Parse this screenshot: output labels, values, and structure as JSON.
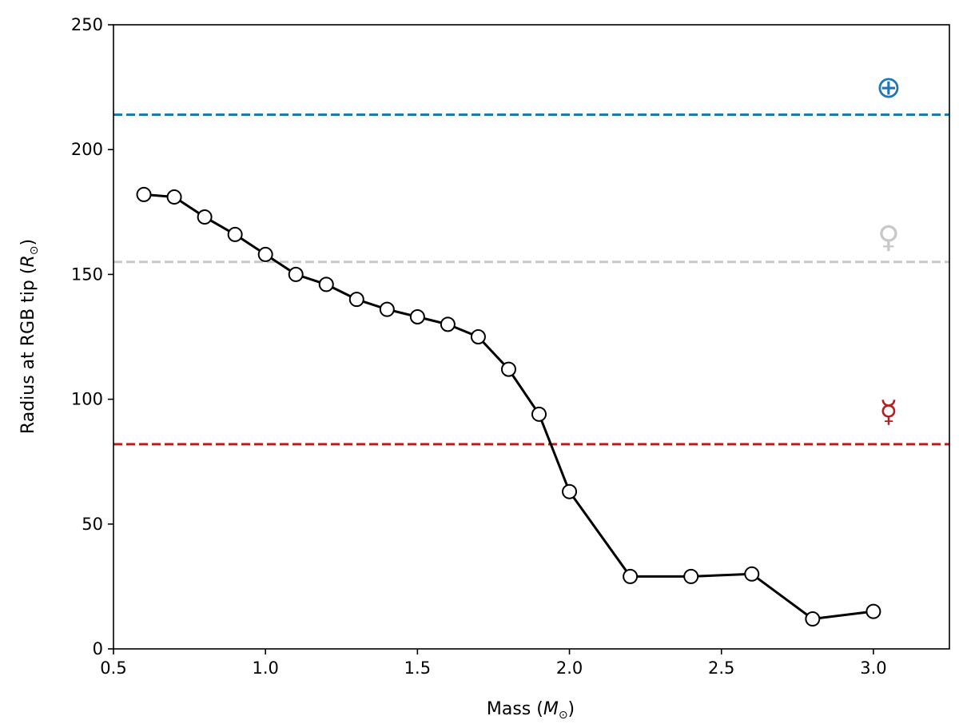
{
  "chart_data": {
    "type": "line",
    "title": "",
    "xlabel": "Mass",
    "xlabel_unit": "M",
    "ylabel": "Radius at RGB tip",
    "ylabel_unit": "R",
    "unit_subscript": "⊙",
    "xlim": [
      0.5,
      3.25
    ],
    "ylim": [
      0,
      250
    ],
    "xticks": [
      "0.5",
      "1.0",
      "1.5",
      "2.0",
      "2.5",
      "3.0"
    ],
    "yticks": [
      "0",
      "50",
      "100",
      "150",
      "200",
      "250"
    ],
    "grid": false,
    "series": [
      {
        "x": [
          0.6,
          0.7,
          0.8,
          0.9,
          1.0,
          1.1,
          1.2,
          1.3,
          1.4,
          1.5,
          1.6,
          1.7,
          1.8,
          1.9,
          2.0,
          2.2,
          2.4,
          2.6,
          2.8,
          3.0
        ],
        "y": [
          182,
          181,
          173,
          166,
          158,
          150,
          146,
          140,
          136,
          133,
          130,
          125,
          112,
          94,
          63,
          29,
          29,
          30,
          12,
          15
        ],
        "color": "#000000",
        "marker": "open-circle"
      }
    ],
    "reference_lines": [
      {
        "y": 214,
        "color": "#1f77b4",
        "style": "dashed",
        "symbol": "⊕",
        "symbol_x": 3.05,
        "symbol_y": 225
      },
      {
        "y": 155,
        "color": "#c8c8c8",
        "style": "dashed",
        "symbol": "♀",
        "symbol_x": 3.05,
        "symbol_y": 165
      },
      {
        "y": 82,
        "color": "#b22222",
        "style": "dashed",
        "symbol": "☿",
        "symbol_x": 3.05,
        "symbol_y": 95
      }
    ]
  }
}
